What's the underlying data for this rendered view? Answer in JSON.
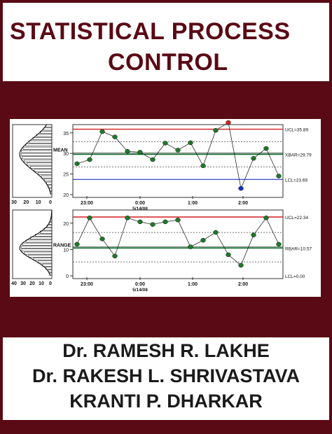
{
  "title": {
    "line1": "STATISTICAL PROCESS",
    "line2": "CONTROL"
  },
  "authors": [
    "Dr. RAMESH R. LAKHE",
    "Dr. RAKESH L. SHRIVASTAVA",
    "KRANTI P. DHARKAR"
  ],
  "colors": {
    "maroon": "#5a0a14",
    "ucl": "#d11f1f",
    "center": "#0e6b2a",
    "lcl": "#1f2fbf",
    "point_in": "#1e7a2a",
    "point_out_high": "#e02020",
    "point_out_low": "#1530c8"
  },
  "chart_data": [
    {
      "type": "line",
      "label": "MEAN",
      "x_ticks": [
        "23:00",
        "0:00",
        "1:00",
        "2:00"
      ],
      "x_date_label": "5/14/08",
      "y_ticks": [
        20,
        25,
        30,
        35
      ],
      "ylim": [
        20,
        37
      ],
      "histogram_ticks": [
        30,
        20,
        10,
        0
      ],
      "limits": {
        "ucl_label": "UCL=35.89",
        "center_label": "XBAR=29.79",
        "lcl_label": "LCL=23.69",
        "ucl": 35.89,
        "center": 29.79,
        "lcl": 23.69
      },
      "values": [
        27.5,
        28.5,
        35.3,
        34,
        30.5,
        30.3,
        28.5,
        32.5,
        30.8,
        32.6,
        27,
        35.6,
        37.5,
        21.5,
        28.8,
        31.2,
        24.5
      ]
    },
    {
      "type": "line",
      "label": "RANGE",
      "x_ticks": [
        "23:00",
        "0:00",
        "1:00",
        "2:00"
      ],
      "x_date_label": "5/14/08",
      "y_ticks": [
        0,
        10,
        20
      ],
      "ylim": [
        0,
        25
      ],
      "histogram_ticks": [
        40,
        30,
        20,
        10,
        0
      ],
      "limits": {
        "ucl_label": "UCL=22.34",
        "center_label": "RBAR=10.57",
        "lcl_label": "LCL=0.00",
        "ucl": 22.34,
        "center": 10.57,
        "lcl": 0
      },
      "values": [
        12,
        22,
        14,
        7.5,
        22,
        20.5,
        19.5,
        20.5,
        21.2,
        11,
        13.5,
        16.5,
        8,
        4,
        15.5,
        22,
        12
      ]
    }
  ]
}
